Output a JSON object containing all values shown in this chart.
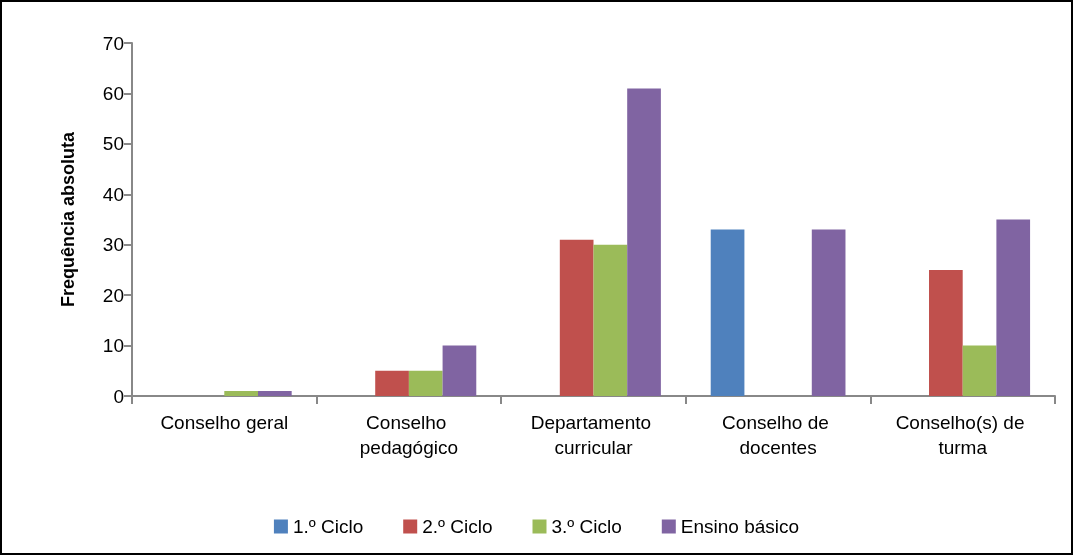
{
  "chart_data": {
    "type": "bar",
    "ylabel": "Frequência absoluta",
    "categories": [
      "Conselho geral",
      "Conselho pedagógico",
      "Departamento curricular",
      "Conselho de docentes",
      "Conselho(s) de turma"
    ],
    "series": [
      {
        "name": "1.º Ciclo",
        "color": "#4f81bd",
        "values": [
          0,
          0,
          0,
          33,
          0
        ]
      },
      {
        "name": "2.º Ciclo",
        "color": "#c0504d",
        "values": [
          0,
          5,
          31,
          0,
          25
        ]
      },
      {
        "name": "3.º Ciclo",
        "color": "#9bbb59",
        "values": [
          1,
          5,
          30,
          0,
          10
        ]
      },
      {
        "name": "Ensino básico",
        "color": "#8064a2",
        "values": [
          1,
          10,
          61,
          33,
          35
        ]
      }
    ],
    "ylim": [
      0,
      70
    ],
    "yticks": [
      0,
      10,
      20,
      30,
      40,
      50,
      60,
      70
    ],
    "grid": false,
    "legend": "bottom"
  }
}
